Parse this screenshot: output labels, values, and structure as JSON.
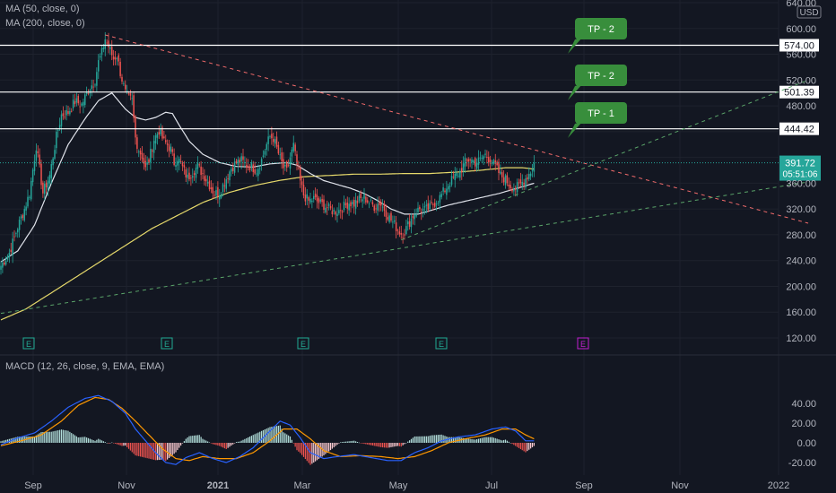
{
  "colors": {
    "background": "#131722",
    "up": "#26a69a",
    "down": "#ef5350",
    "ma50": "#e0e3eb",
    "ma200": "#e6d96b",
    "macd": "#2962ff",
    "signal": "#ff9800",
    "resistance": "#f06a6a",
    "support": "#5aa469",
    "tp_box": "#388e3c",
    "price_label": "#26a69a"
  },
  "legend": {
    "ma50": "MA (50, close, 0)",
    "ma200": "MA (200, close, 0)",
    "macd": "MACD (12, 26, close, 9, EMA, EMA)"
  },
  "currency": "USD",
  "chart_data": {
    "type": "candlestick",
    "price_axis": {
      "ticks": [
        "640.00",
        "600.00",
        "560.00",
        "520.00",
        "480.00",
        "440.00",
        "400.00",
        "360.00",
        "320.00",
        "280.00",
        "240.00",
        "200.00",
        "160.00",
        "120.00"
      ],
      "range": [
        100,
        640
      ]
    },
    "time_axis": {
      "ticks": [
        "Sep",
        "Nov",
        "2021",
        "Mar",
        "May",
        "Jul",
        "Sep",
        "Nov",
        "2022"
      ]
    },
    "close_anchors": [
      [
        0,
        232
      ],
      [
        5,
        252
      ],
      [
        10,
        292
      ],
      [
        14,
        320
      ],
      [
        17,
        344
      ],
      [
        21,
        418
      ],
      [
        25,
        345
      ],
      [
        29,
        372
      ],
      [
        33,
        432
      ],
      [
        36,
        466
      ],
      [
        40,
        470
      ],
      [
        44,
        487
      ],
      [
        48,
        482
      ],
      [
        52,
        505
      ],
      [
        56,
        520
      ],
      [
        58,
        548
      ],
      [
        60,
        562
      ],
      [
        62,
        584
      ],
      [
        64,
        572
      ],
      [
        67,
        553
      ],
      [
        69,
        558
      ],
      [
        71,
        532
      ],
      [
        74,
        500
      ],
      [
        76,
        492
      ],
      [
        78,
        488
      ],
      [
        80,
        430
      ],
      [
        82,
        412
      ],
      [
        84,
        402
      ],
      [
        86,
        382
      ],
      [
        88,
        395
      ],
      [
        91,
        428
      ],
      [
        94,
        442
      ],
      [
        97,
        424
      ],
      [
        99,
        420
      ],
      [
        101,
        412
      ],
      [
        103,
        392
      ],
      [
        105,
        400
      ],
      [
        108,
        384
      ],
      [
        111,
        368
      ],
      [
        114,
        378
      ],
      [
        117,
        386
      ],
      [
        120,
        375
      ],
      [
        123,
        362
      ],
      [
        127,
        344
      ],
      [
        130,
        346
      ],
      [
        133,
        362
      ],
      [
        137,
        384
      ],
      [
        140,
        392
      ],
      [
        143,
        395
      ],
      [
        146,
        388
      ],
      [
        149,
        386
      ],
      [
        152,
        380
      ],
      [
        155,
        396
      ],
      [
        158,
        420
      ],
      [
        160,
        432
      ],
      [
        162,
        430
      ],
      [
        164,
        414
      ],
      [
        166,
        398
      ],
      [
        168,
        384
      ],
      [
        170,
        378
      ],
      [
        172,
        400
      ],
      [
        174,
        418
      ],
      [
        176,
        388
      ],
      [
        178,
        362
      ],
      [
        180,
        342
      ],
      [
        183,
        332
      ],
      [
        186,
        336
      ],
      [
        189,
        330
      ],
      [
        192,
        326
      ],
      [
        195,
        320
      ],
      [
        198,
        316
      ],
      [
        201,
        318
      ],
      [
        204,
        324
      ],
      [
        207,
        330
      ],
      [
        210,
        328
      ],
      [
        213,
        334
      ],
      [
        216,
        338
      ],
      [
        219,
        330
      ],
      [
        222,
        324
      ],
      [
        225,
        330
      ],
      [
        228,
        320
      ],
      [
        231,
        306
      ],
      [
        234,
        296
      ],
      [
        236,
        288
      ],
      [
        238,
        282
      ],
      [
        240,
        285
      ],
      [
        243,
        300
      ],
      [
        246,
        314
      ],
      [
        249,
        320
      ],
      [
        252,
        318
      ],
      [
        255,
        322
      ],
      [
        258,
        330
      ],
      [
        261,
        338
      ],
      [
        264,
        350
      ],
      [
        267,
        362
      ],
      [
        270,
        370
      ],
      [
        273,
        378
      ],
      [
        276,
        392
      ],
      [
        279,
        398
      ],
      [
        282,
        392
      ],
      [
        285,
        396
      ],
      [
        288,
        404
      ],
      [
        291,
        396
      ],
      [
        294,
        386
      ],
      [
        297,
        372
      ],
      [
        300,
        366
      ],
      [
        303,
        356
      ],
      [
        306,
        352
      ],
      [
        309,
        358
      ],
      [
        312,
        368
      ],
      [
        315,
        378
      ],
      [
        317,
        391.72
      ]
    ],
    "open_anchors_offset_note": "",
    "last_price": "391.72",
    "countdown": "05:51:06",
    "levels": [
      {
        "value": 574.0,
        "label": "574.00",
        "tp": "TP - 2"
      },
      {
        "value": 501.39,
        "label": "501.39",
        "tp": "TP - 2"
      },
      {
        "value": 444.42,
        "label": "444.42",
        "tp": "TP - 1"
      }
    ],
    "earnings_marker": "E",
    "earnings_indices": [
      12,
      98,
      176,
      260,
      340
    ],
    "trendlines": {
      "resistance": {
        "from": [
          62,
          590
        ],
        "to": [
          480,
          298
        ]
      },
      "support_low": {
        "from": [
          0,
          158
        ],
        "to": [
          480,
          362
        ]
      },
      "support_high": {
        "from": [
          238,
          272
        ],
        "to": [
          480,
          520
        ]
      }
    },
    "ma50_anchors": [
      [
        0,
        238
      ],
      [
        10,
        255
      ],
      [
        20,
        295
      ],
      [
        30,
        360
      ],
      [
        40,
        420
      ],
      [
        50,
        460
      ],
      [
        58,
        488
      ],
      [
        66,
        500
      ],
      [
        74,
        475
      ],
      [
        80,
        462
      ],
      [
        86,
        458
      ],
      [
        92,
        462
      ],
      [
        98,
        470
      ],
      [
        102,
        468
      ],
      [
        106,
        450
      ],
      [
        112,
        425
      ],
      [
        120,
        405
      ],
      [
        130,
        392
      ],
      [
        140,
        386
      ],
      [
        150,
        385
      ],
      [
        160,
        390
      ],
      [
        170,
        392
      ],
      [
        176,
        388
      ],
      [
        184,
        375
      ],
      [
        192,
        364
      ],
      [
        200,
        358
      ],
      [
        208,
        352
      ],
      [
        216,
        344
      ],
      [
        224,
        333
      ],
      [
        232,
        320
      ],
      [
        240,
        312
      ],
      [
        248,
        312
      ],
      [
        256,
        318
      ],
      [
        266,
        326
      ],
      [
        276,
        332
      ],
      [
        286,
        338
      ],
      [
        296,
        344
      ],
      [
        304,
        350
      ],
      [
        312,
        356
      ],
      [
        317,
        360
      ]
    ],
    "ma200_anchors": [
      [
        0,
        148
      ],
      [
        15,
        165
      ],
      [
        30,
        190
      ],
      [
        45,
        215
      ],
      [
        60,
        240
      ],
      [
        75,
        265
      ],
      [
        90,
        290
      ],
      [
        105,
        310
      ],
      [
        120,
        330
      ],
      [
        135,
        345
      ],
      [
        150,
        356
      ],
      [
        165,
        364
      ],
      [
        180,
        370
      ],
      [
        195,
        372
      ],
      [
        210,
        374
      ],
      [
        225,
        374
      ],
      [
        240,
        375
      ],
      [
        255,
        375
      ],
      [
        270,
        377
      ],
      [
        285,
        380
      ],
      [
        300,
        384
      ],
      [
        310,
        384
      ],
      [
        317,
        382
      ]
    ],
    "macd": {
      "range": [
        -30,
        55
      ],
      "ticks": [
        "40.00",
        "20.00",
        "0.00",
        "-20.00"
      ],
      "macd_anchors": [
        [
          0,
          -2
        ],
        [
          10,
          5
        ],
        [
          20,
          10
        ],
        [
          30,
          22
        ],
        [
          40,
          36
        ],
        [
          50,
          45
        ],
        [
          58,
          48
        ],
        [
          66,
          42
        ],
        [
          74,
          30
        ],
        [
          80,
          14
        ],
        [
          86,
          2
        ],
        [
          92,
          -10
        ],
        [
          98,
          -20
        ],
        [
          104,
          -22
        ],
        [
          110,
          -15
        ],
        [
          118,
          -10
        ],
        [
          126,
          -16
        ],
        [
          134,
          -20
        ],
        [
          142,
          -14
        ],
        [
          150,
          -5
        ],
        [
          160,
          12
        ],
        [
          166,
          22
        ],
        [
          172,
          18
        ],
        [
          178,
          5
        ],
        [
          184,
          -10
        ],
        [
          192,
          -16
        ],
        [
          200,
          -14
        ],
        [
          210,
          -12
        ],
        [
          220,
          -15
        ],
        [
          230,
          -18
        ],
        [
          238,
          -18
        ],
        [
          246,
          -10
        ],
        [
          254,
          -5
        ],
        [
          262,
          2
        ],
        [
          272,
          6
        ],
        [
          282,
          8
        ],
        [
          292,
          14
        ],
        [
          300,
          16
        ],
        [
          306,
          12
        ],
        [
          312,
          2
        ],
        [
          317,
          2
        ]
      ],
      "signal_anchors": [
        [
          0,
          -3
        ],
        [
          12,
          2
        ],
        [
          24,
          8
        ],
        [
          36,
          22
        ],
        [
          46,
          38
        ],
        [
          56,
          46
        ],
        [
          64,
          44
        ],
        [
          72,
          35
        ],
        [
          80,
          22
        ],
        [
          88,
          8
        ],
        [
          96,
          -6
        ],
        [
          104,
          -16
        ],
        [
          112,
          -18
        ],
        [
          120,
          -14
        ],
        [
          130,
          -16
        ],
        [
          140,
          -16
        ],
        [
          150,
          -10
        ],
        [
          160,
          2
        ],
        [
          168,
          14
        ],
        [
          176,
          14
        ],
        [
          184,
          4
        ],
        [
          192,
          -8
        ],
        [
          202,
          -14
        ],
        [
          214,
          -13
        ],
        [
          226,
          -14
        ],
        [
          236,
          -16
        ],
        [
          246,
          -14
        ],
        [
          256,
          -8
        ],
        [
          266,
          0
        ],
        [
          276,
          4
        ],
        [
          288,
          8
        ],
        [
          298,
          14
        ],
        [
          306,
          14
        ],
        [
          312,
          8
        ],
        [
          317,
          4
        ]
      ]
    }
  }
}
